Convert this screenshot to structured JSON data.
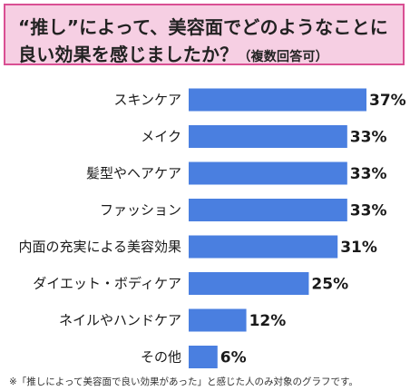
{
  "title": {
    "line1": "“推し”によって、美容面でどのようなことに",
    "line2": "良い効果を感じましたか？",
    "note": "（複数回答可）"
  },
  "chart_data": {
    "type": "bar",
    "orientation": "horizontal",
    "categories": [
      "スキンケア",
      "メイク",
      "髪型やヘアケア",
      "ファッション",
      "内面の充実による美容効果",
      "ダイエット・ボディケア",
      "ネイルやハンドケア",
      "その他"
    ],
    "values": [
      37,
      33,
      33,
      33,
      31,
      25,
      12,
      6
    ],
    "value_labels": [
      "37%",
      "33%",
      "33%",
      "33%",
      "31%",
      "25%",
      "12%",
      "6%"
    ],
    "unit": "%",
    "xlim": [
      0,
      37
    ],
    "bar_color": "#4a7fe0",
    "grid": false,
    "legend": "none"
  },
  "footnote": "※「推しによって美容面で良い効果があった」と感じた人のみ対象のグラフです。"
}
